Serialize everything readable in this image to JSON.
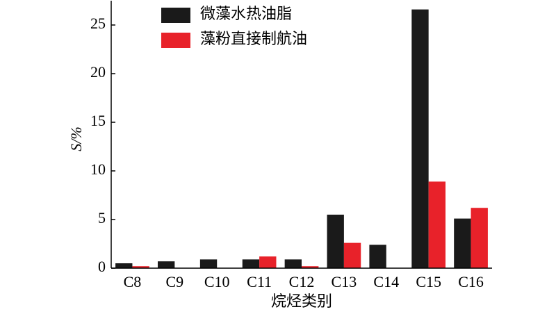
{
  "chart_data": {
    "type": "bar",
    "x_label": "烷烃类别",
    "y_label": "S/%",
    "categories": [
      "C8",
      "C9",
      "C10",
      "C11",
      "C12",
      "C13",
      "C14",
      "C15",
      "C16"
    ],
    "series": [
      {
        "name": "微藻水热油脂",
        "color": "#1a1a1a",
        "values": [
          0.5,
          0.7,
          0.9,
          0.9,
          0.9,
          5.5,
          2.4,
          26.6,
          5.1
        ]
      },
      {
        "name": "藻粉直接制航油",
        "color": "#e8222a",
        "values": [
          0.2,
          0,
          0,
          1.2,
          0.2,
          2.6,
          0,
          8.9,
          6.2
        ]
      }
    ],
    "ylim": [
      0,
      27.5
    ],
    "yticks": [
      0,
      5,
      10,
      15,
      20,
      25
    ],
    "legend": "upper-left"
  }
}
